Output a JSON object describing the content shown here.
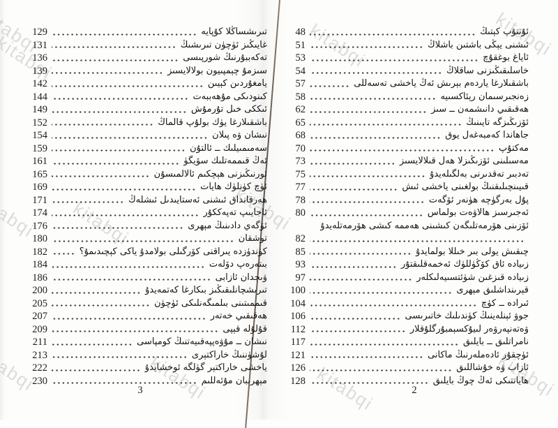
{
  "watermark_text": "kitabqi",
  "toc": {
    "left_page": {
      "folio": "3",
      "entries": [
        {
          "title": "تىرىشساڭلا كۇپايە",
          "page": "129"
        },
        {
          "title": "غايىڭىز ئۈچۈن تىرىشىڭ",
          "page": "131"
        },
        {
          "title": "تەكەببۇرنىڭ شورپىسى",
          "page": "136"
        },
        {
          "title": "سىزمۇ چېمپىيون بولالايسىز",
          "page": "139"
        },
        {
          "title": "يامغۇردىن كېيىن",
          "page": "142"
        },
        {
          "title": "كىنودىكى مۇھەببەت",
          "page": "144"
        },
        {
          "title": "ئىككى خىل تۇرمۇش",
          "page": "149"
        },
        {
          "title": "باشقىلارغا يۈك بولۇپ قالماڭ",
          "page": "152"
        },
        {
          "title": "نىشان ۋە پىلان",
          "page": "154"
        },
        {
          "title": "سەمىمىيلىك ــ ئالتۇن",
          "page": "159"
        },
        {
          "title": "ئەڭ قىممەتلىك سۆيگۈ",
          "page": "161"
        },
        {
          "title": "ئورنىڭىزنى ھېچكىم ئالالمىسۇن",
          "page": "165"
        },
        {
          "title": "ئۈچ كۈنلۈك ھايات",
          "page": "169"
        },
        {
          "title": "ھەرقانداق ئىشنى ئەستايىدىل ئىشلەڭ",
          "page": "171"
        },
        {
          "title": "ئاجايىپ تەپەككۇر",
          "page": "174"
        },
        {
          "title": "ئۆگەي دادىنىڭ مېھرى",
          "page": "176"
        },
        {
          "title": "توشقان",
          "page": "180"
        },
        {
          "title": "كۈندۈزدە يىراقنى كۆرگىلى بولامدۇ ياكى كېچىدىمۇ؟",
          "page": "182"
        },
        {
          "title": "بىتەرەپ دۆلەت",
          "page": "184"
        },
        {
          "title": "ۋىجدان ئازابى",
          "page": "186"
        },
        {
          "title": "تىرىشچانلىقىڭىز بىكارغا كەتمەيدۇ",
          "page": "200"
        },
        {
          "title": "قىممىتىنى بىلمىگەنلىكى ئۈچۈن",
          "page": "205"
        },
        {
          "title": "ھەقىقىي خەتەر",
          "page": "207"
        },
        {
          "title": "قۇلۇلە قېپى",
          "page": "209"
        },
        {
          "title": "نىشان ــ مۇۋەپپەقىيەتنىڭ كومپاسى",
          "page": "211"
        },
        {
          "title": "لۇشۈننىڭ خاراكتېرى",
          "page": "213"
        },
        {
          "title": "ياخشى خاراكتېر گۈلگە ئوخشايدۇ",
          "page": "222"
        },
        {
          "title": "مېھرىبان مۇئەللىم",
          "page": "230"
        }
      ]
    },
    "right_page": {
      "folio": "2",
      "entries": [
        {
          "title": "ئۇنتۇپ كېتىڭ",
          "page": "48"
        },
        {
          "title": "ئىشنى يېڭى باشتىن باشلاڭ",
          "page": "51"
        },
        {
          "title": "ئاياغ بوغقۇچ",
          "page": "53"
        },
        {
          "title": "خاسلىقىڭىزنى ساقلاڭ",
          "page": "54"
        },
        {
          "title": "باشقىلارغا ياردەم بېرىش ئەڭ ياخشى تەسەللى",
          "page": "57"
        },
        {
          "title": "زەنجىرسىمان رېئاكسىيە",
          "page": "58"
        },
        {
          "title": "ھەقىقىي دانىشمەن ــ سىز",
          "page": "62"
        },
        {
          "title": "ئۆزىڭىزگە تايىنىڭ",
          "page": "65"
        },
        {
          "title": "جاھاندا كەمبەغەل يوق",
          "page": "68"
        },
        {
          "title": "مەكتۇپ",
          "page": "70"
        },
        {
          "title": "مەسىلىنى ئۆزىڭىزلا ھەل قىلالايسىز",
          "page": "73"
        },
        {
          "title": "تەدبىر تەقدىرنى بەلگىلەيدۇ",
          "page": "75"
        },
        {
          "title": "قىيىنچىلىقنىڭ بولغىنى ياخشى ئىش",
          "page": "77"
        },
        {
          "title": "پۇل بەرگۈچە ھۈنەر ئۆگەت",
          "page": "78"
        },
        {
          "title": "ئەجىرسىز ھالاۋەت بولماس",
          "page": "80"
        },
        {
          "title": "ئۆزىنى ھۆرمەتلىگەن كىشىنى ھەممە كىشى ھۆرمەتلەيدۇ",
          "page": "82",
          "two_line": true
        },
        {
          "title": "چىقىش يولى بىر خىللا بولمايدۇ",
          "page": "85"
        },
        {
          "title": "زىيادە ئاق كۆڭۈللۈك ئەخمەقلىقتۇر",
          "page": "93"
        },
        {
          "title": "زىيادە قىزغىن شۈئتسىيەلىكلەر",
          "page": "97"
        },
        {
          "title": "قېرىنداشلىق مېھرى",
          "page": "100"
        },
        {
          "title": "ئىرادە ــ كۈچ",
          "page": "104"
        },
        {
          "title": "جوۋ ئېنلەينىڭ كۈندىلىك خاتىرىسى",
          "page": "106"
        },
        {
          "title": "ۋەتەنپەرۋەر لىيۇكسېمبۇرگلۇقلار",
          "page": "112"
        },
        {
          "title": "نامراتلىق ــ بايلىق",
          "page": "117"
        },
        {
          "title": "ئۈچقۇر ئادەملەرنىڭ ماكانى",
          "page": "121"
        },
        {
          "title": "ئازاب ۋە خۇشاللىق",
          "page": "126"
        },
        {
          "title": "ھاياتتىكى ئەڭ چوڭ بايلىق",
          "page": "128"
        }
      ]
    }
  }
}
